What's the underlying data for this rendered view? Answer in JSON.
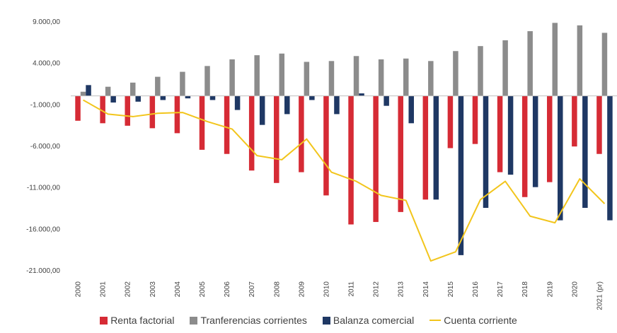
{
  "chart_data": {
    "type": "bar",
    "title": "",
    "xlabel": "",
    "ylabel": "",
    "ylim": [
      -21000,
      9000
    ],
    "y_ticks": [
      "9.000,00",
      "4.000,00",
      "-1.000,00",
      "-6.000,00",
      "-11.000,00",
      "-16.000,00",
      "-21.000,00"
    ],
    "y_tick_values": [
      9000,
      4000,
      -1000,
      -6000,
      -11000,
      -16000,
      -21000
    ],
    "categories": [
      "2000",
      "2001",
      "2002",
      "2003",
      "2004",
      "2005",
      "2006",
      "2007",
      "2008",
      "2009",
      "2010",
      "2011",
      "2012",
      "2013",
      "2014",
      "2015",
      "2016",
      "2017",
      "2018",
      "2019",
      "2020",
      "2021 (pr)"
    ],
    "series": [
      {
        "name": "Renta factorial",
        "type": "bar",
        "color": "#d62b35",
        "values": [
          -3000,
          -3300,
          -3600,
          -3900,
          -4500,
          -6500,
          -7000,
          -9000,
          -10500,
          -9200,
          -12000,
          -15500,
          -15200,
          -14000,
          -12500,
          -6300,
          -5800,
          -9200,
          -12200,
          -10400,
          -6100,
          -7000
        ]
      },
      {
        "name": "Tranferencias corrientes",
        "type": "bar",
        "color": "#8c8c8c",
        "values": [
          500,
          1100,
          1600,
          2300,
          2900,
          3600,
          4400,
          4900,
          5100,
          4100,
          4200,
          4800,
          4400,
          4500,
          4200,
          5400,
          6000,
          6700,
          7800,
          8800,
          8500,
          7600
        ]
      },
      {
        "name": "Balanza comercial",
        "type": "bar",
        "color": "#1f3864",
        "values": [
          1300,
          -800,
          -700,
          -500,
          -300,
          -500,
          -1700,
          -3500,
          -2200,
          -500,
          -2200,
          300,
          -1200,
          -3300,
          -12500,
          -19200,
          -13500,
          -9500,
          -11000,
          -15000,
          -13500,
          -15000
        ]
      },
      {
        "name": "Cuenta corriente",
        "type": "line",
        "color": "#f2c51c",
        "values": [
          -500,
          -2200,
          -2500,
          -2100,
          -2000,
          -3100,
          -4000,
          -7200,
          -7700,
          -5200,
          -9200,
          -10300,
          -12000,
          -12600,
          -19900,
          -18800,
          -12500,
          -10300,
          -14500,
          -15300,
          -10000,
          -13000
        ]
      }
    ],
    "legend_position": "bottom",
    "grid": false
  }
}
